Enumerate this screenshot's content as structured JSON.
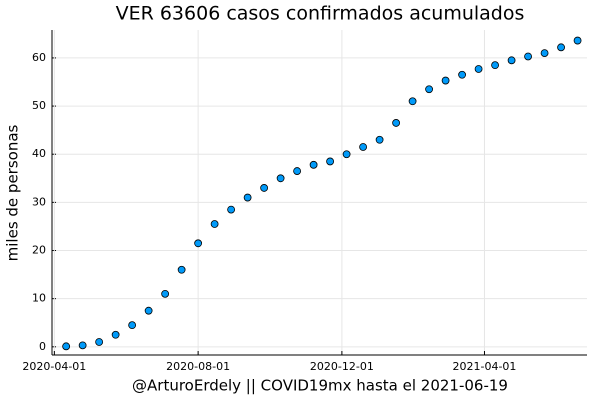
{
  "chart_data": {
    "type": "scatter",
    "title": "VER   63606 casos confirmados acumulados",
    "x_label": "@ArturoErdely || COVID19mx hasta el 2021-06-19",
    "y_label": "miles de personas",
    "color": "#009af9",
    "grid": true,
    "x": [
      "2020-04-11",
      "2020-04-25",
      "2020-05-09",
      "2020-05-23",
      "2020-06-06",
      "2020-06-20",
      "2020-07-04",
      "2020-07-18",
      "2020-08-01",
      "2020-08-15",
      "2020-08-29",
      "2020-09-12",
      "2020-09-26",
      "2020-10-10",
      "2020-10-24",
      "2020-11-07",
      "2020-11-21",
      "2020-12-05",
      "2020-12-19",
      "2021-01-02",
      "2021-01-16",
      "2021-01-30",
      "2021-02-13",
      "2021-02-27",
      "2021-03-13",
      "2021-03-27",
      "2021-04-10",
      "2021-04-24",
      "2021-05-08",
      "2021-05-22",
      "2021-06-05",
      "2021-06-19"
    ],
    "values": [
      0.1,
      0.3,
      1.0,
      2.5,
      4.5,
      7.5,
      11,
      16,
      21.5,
      25.5,
      28.5,
      31,
      33,
      35,
      36.5,
      37.8,
      38.5,
      40,
      41.5,
      43,
      46.5,
      51,
      53.5,
      55.3,
      56.5,
      57.7,
      58.5,
      59.5,
      60.3,
      61,
      62.2,
      63.606
    ],
    "xlim": [
      "2020-03-30",
      "2021-06-27"
    ],
    "xticks": [
      "2020-04-01",
      "2020-08-01",
      "2020-12-01",
      "2021-04-01"
    ],
    "ylim": [
      -1.7,
      65.8
    ],
    "yticks": [
      0,
      10,
      20,
      30,
      40,
      50,
      60
    ]
  }
}
